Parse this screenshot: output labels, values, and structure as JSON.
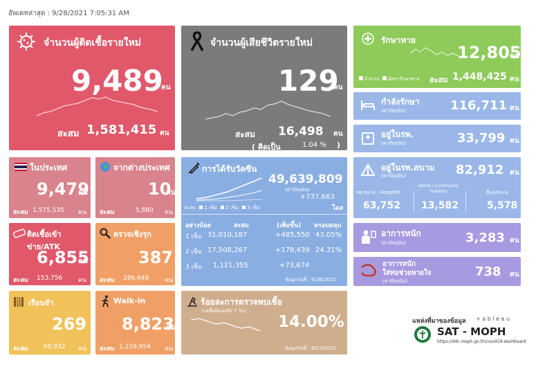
{
  "updated": "อัพเดทล่าสุด : 9/28/2021 7:05:31 AM",
  "colors": {
    "red": "#e0586a",
    "gray": "#7b7b7b",
    "green": "#8ecb5a",
    "blue": "#8fb1e4",
    "pink": "#d9838c",
    "orange": "#f0a066",
    "yellow": "#f1c25a",
    "tan": "#cfae8e",
    "purple": "#a79ae0",
    "vaccine": "#89aee2",
    "blue2": "#9ab7e8"
  },
  "new_cases": {
    "title": "จำนวนผู้ติดเชื้อรายใหม่",
    "value": "9,489",
    "unit": "คน",
    "total_label": "สะสม",
    "total": "1,581,415",
    "total_unit": "คน"
  },
  "new_deaths": {
    "title": "จำนวนผู้เสียชีวิตรายใหม่",
    "value": "129",
    "unit": "คน",
    "total_label": "สะสม",
    "total": "16,498",
    "total_unit": "คน",
    "pct_label": "( คิดเป็น",
    "pct": "1.04 %",
    "pct_close": ")"
  },
  "recovered": {
    "title": "รักษาหาย",
    "value": "12,805",
    "unit": "คน",
    "legend_count": "จำนวน",
    "legend_rate": "อัตรารักษาหาย",
    "total_label": "สะสม",
    "total": "1,448,425",
    "total_unit": "คน"
  },
  "treating": {
    "title": "กำลังรักษา",
    "sub": "(ค่าปัจจุบัน)",
    "value": "116,711",
    "unit": "คน"
  },
  "hospital": {
    "title": "อยู่ในรพ.",
    "sub": "(ค่าปัจจุบัน)",
    "value": "33,799",
    "unit": "คน"
  },
  "field_hospital": {
    "title": "อยู่ในรพ.สนาม",
    "sub": "(ค่าปัจจุบัน)",
    "value": "82,912",
    "unit": "คน",
    "col1_label": "รพ.สนาม / Hospitel",
    "col1_value": "63,752",
    "col2_label": "Home / Community Isolation",
    "col2_value": "13,582",
    "col3_label": "อื่นๆ/ประมุ",
    "col3_value": "5,578"
  },
  "severe": {
    "title": "อาการหนัก",
    "sub": "(ค่าปัจจุบัน)",
    "value": "3,283",
    "unit": "คน"
  },
  "ventilator": {
    "title": "อาการหนัก",
    "title2": "ใส่ท่อช่วยหายใจ",
    "sub": "(ค่าปัจจุบัน)",
    "value": "738",
    "unit": "คน"
  },
  "domestic": {
    "title": "ในประเทศ",
    "value": "9,479",
    "unit": "คน",
    "total_label": "สะสม",
    "total": "1,575,535",
    "total_unit": "คน"
  },
  "abroad": {
    "title": "จากต่างประเทศ",
    "value": "10",
    "unit": "คน",
    "total_label": "สะสม",
    "total": "5,880",
    "total_unit": "คน"
  },
  "prison_atk": {
    "title": "ติดเชื้อเข้าข่าย/ATK",
    "value": "6,855",
    "unit": "คน",
    "total_label": "สะสม",
    "total": "153,756",
    "total_unit": "คน"
  },
  "proactive": {
    "title": "ตรวจเชิงรุก",
    "value": "387",
    "unit": "คน",
    "total_label": "สะสม",
    "total": "286,649",
    "total_unit": "คน"
  },
  "prison": {
    "title": "เรือนจำ",
    "value": "269",
    "unit": "คน",
    "total_label": "สะสม",
    "total": "68,932",
    "total_unit": "คน"
  },
  "walkin": {
    "title": "Walk-in",
    "value": "8,823",
    "unit": "คน",
    "total_label": "สะสม",
    "total": "1,219,954",
    "total_unit": "คน"
  },
  "vaccine": {
    "title": "การได้รับวัคซีน",
    "total": "49,639,809",
    "total_unit": "(ค่าปัจจุบัน)",
    "increase": "+737,663",
    "increase_unit": "โดส",
    "legend_label": "สะสม",
    "legend1": "1 เข็ม",
    "legend2": "2 เข็ม",
    "legend3": "3 เข็ม",
    "headers": [
      "อย่างน้อย",
      "สะสม",
      "(เพิ่มขึ้น)",
      "ครอบคลุม"
    ],
    "rows": [
      {
        "dose": "1 เข็ม",
        "total": "31,010,187",
        "inc": "+485,550",
        "cov": "43.05%"
      },
      {
        "dose": "2 เข็ม",
        "total": "17,508,267",
        "inc": "+178,439",
        "cov": "24.31%"
      },
      {
        "dose": "3 เข็ม",
        "total": "1,121,355",
        "inc": "+73,674",
        "cov": ""
      }
    ],
    "footer": "ข้อมูลวันที่ : 9/26/2021"
  },
  "positive_rate": {
    "title": "ร้อยละการตรวจพบเชื้อ",
    "sub": "(เฉลี่ยย้อนหลัง 7 วัน)",
    "value": "14.00%",
    "footer": "ข้อมูลวันที่ : 9/27/2021"
  },
  "source": {
    "label": "แหล่งที่มาของข้อมูล",
    "tableau": "+ a b l e a u",
    "brand": "SAT - MOPH",
    "url": "https://ddc.moph.go.th/covid19-dashboard"
  }
}
